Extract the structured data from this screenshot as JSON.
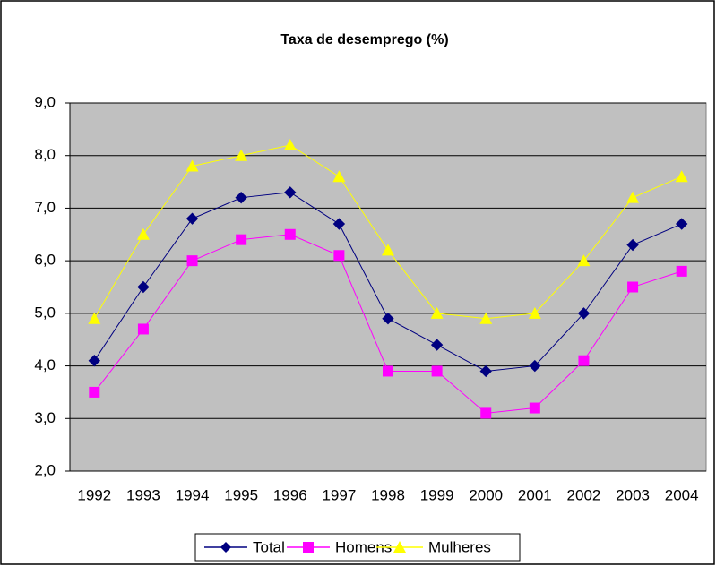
{
  "chart_data": {
    "type": "line",
    "title": "Taxa de desemprego (%)",
    "categories": [
      "1992",
      "1993",
      "1994",
      "1995",
      "1996",
      "1997",
      "1998",
      "1999",
      "2000",
      "2001",
      "2002",
      "2003",
      "2004"
    ],
    "series": [
      {
        "name": "Total",
        "color": "#000080",
        "marker": "diamond",
        "values": [
          4.1,
          5.5,
          6.8,
          7.2,
          7.3,
          6.7,
          4.9,
          4.4,
          3.9,
          4.0,
          5.0,
          6.3,
          6.7
        ]
      },
      {
        "name": "Homens",
        "color": "#FF00FF",
        "marker": "square",
        "values": [
          3.5,
          4.7,
          6.0,
          6.4,
          6.5,
          6.1,
          3.9,
          3.9,
          3.1,
          3.2,
          4.1,
          5.5,
          5.8
        ]
      },
      {
        "name": "Mulheres",
        "color": "#FFFF00",
        "marker": "triangle",
        "values": [
          4.9,
          6.5,
          7.8,
          8.0,
          8.2,
          7.6,
          6.2,
          5.0,
          4.9,
          5.0,
          6.0,
          7.2,
          7.6
        ]
      }
    ],
    "ylim": [
      2,
      9
    ],
    "yticks": [
      {
        "value": 2,
        "label": "2,0"
      },
      {
        "value": 3,
        "label": "3,0"
      },
      {
        "value": 4,
        "label": "4,0"
      },
      {
        "value": 5,
        "label": "5,0"
      },
      {
        "value": 6,
        "label": "6,0"
      },
      {
        "value": 7,
        "label": "7,0"
      },
      {
        "value": 8,
        "label": "8,0"
      },
      {
        "value": 9,
        "label": "9,0"
      }
    ],
    "grid": true,
    "legend": "bottom",
    "plot_background": "#C0C0C0"
  }
}
